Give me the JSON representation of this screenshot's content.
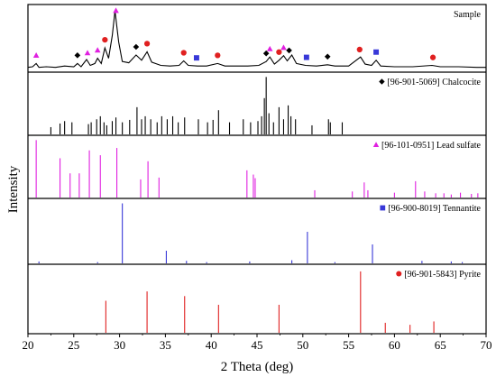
{
  "chart_data": {
    "type": "line",
    "xlabel": "2 Theta (deg)",
    "ylabel": "Intensity",
    "xlim": [
      20,
      70
    ],
    "x_ticks": [
      20,
      25,
      30,
      35,
      40,
      45,
      50,
      55,
      60,
      65,
      70
    ],
    "panels": [
      {
        "label": "Sample",
        "kind": "pattern",
        "color": "#000000",
        "pattern": [
          [
            20.0,
            0.06
          ],
          [
            20.5,
            0.07
          ],
          [
            20.9,
            0.12
          ],
          [
            21.2,
            0.06
          ],
          [
            22,
            0.07
          ],
          [
            23,
            0.06
          ],
          [
            24,
            0.08
          ],
          [
            25,
            0.07
          ],
          [
            25.4,
            0.12
          ],
          [
            25.8,
            0.07
          ],
          [
            26.4,
            0.18
          ],
          [
            26.8,
            0.09
          ],
          [
            27.3,
            0.12
          ],
          [
            27.6,
            0.2
          ],
          [
            28.0,
            0.12
          ],
          [
            28.4,
            0.36
          ],
          [
            28.8,
            0.2
          ],
          [
            29.2,
            0.55
          ],
          [
            29.5,
            0.93
          ],
          [
            29.9,
            0.45
          ],
          [
            30.3,
            0.15
          ],
          [
            31,
            0.13
          ],
          [
            31.8,
            0.25
          ],
          [
            32.4,
            0.17
          ],
          [
            33.0,
            0.3
          ],
          [
            33.5,
            0.14
          ],
          [
            34.5,
            0.09
          ],
          [
            35.5,
            0.08
          ],
          [
            36.5,
            0.09
          ],
          [
            37.0,
            0.16
          ],
          [
            37.5,
            0.09
          ],
          [
            38.5,
            0.08
          ],
          [
            39.5,
            0.08
          ],
          [
            40.7,
            0.12
          ],
          [
            41.5,
            0.08
          ],
          [
            43,
            0.08
          ],
          [
            44,
            0.08
          ],
          [
            45.2,
            0.09
          ],
          [
            46.0,
            0.15
          ],
          [
            46.4,
            0.22
          ],
          [
            46.9,
            0.11
          ],
          [
            47.4,
            0.17
          ],
          [
            47.9,
            0.24
          ],
          [
            48.3,
            0.16
          ],
          [
            48.8,
            0.25
          ],
          [
            49.3,
            0.12
          ],
          [
            50.3,
            0.09
          ],
          [
            51.5,
            0.08
          ],
          [
            52.7,
            0.1
          ],
          [
            53.5,
            0.08
          ],
          [
            55.0,
            0.08
          ],
          [
            56.3,
            0.22
          ],
          [
            56.8,
            0.11
          ],
          [
            57.5,
            0.09
          ],
          [
            58.0,
            0.17
          ],
          [
            58.5,
            0.08
          ],
          [
            60,
            0.07
          ],
          [
            62,
            0.07
          ],
          [
            64.1,
            0.09
          ],
          [
            65,
            0.07
          ],
          [
            67,
            0.07
          ],
          [
            69,
            0.06
          ],
          [
            70,
            0.06
          ]
        ],
        "markers": [
          {
            "x": 20.9,
            "symbol": "triangle",
            "color": "#e020e0"
          },
          {
            "x": 25.4,
            "symbol": "diamond",
            "color": "#000000"
          },
          {
            "x": 26.5,
            "symbol": "triangle",
            "color": "#e020e0"
          },
          {
            "x": 27.6,
            "symbol": "triangle",
            "color": "#e020e0"
          },
          {
            "x": 28.4,
            "symbol": "circle",
            "color": "#e02020"
          },
          {
            "x": 29.6,
            "symbol": "triangle",
            "color": "#e020e0"
          },
          {
            "x": 31.8,
            "symbol": "diamond",
            "color": "#000000"
          },
          {
            "x": 33.0,
            "symbol": "circle",
            "color": "#e02020"
          },
          {
            "x": 37.0,
            "symbol": "circle",
            "color": "#e02020"
          },
          {
            "x": 38.4,
            "symbol": "square",
            "color": "#3838d8"
          },
          {
            "x": 40.7,
            "symbol": "circle",
            "color": "#e02020"
          },
          {
            "x": 46.0,
            "symbol": "diamond",
            "color": "#000000"
          },
          {
            "x": 46.4,
            "symbol": "triangle",
            "color": "#e020e0"
          },
          {
            "x": 47.4,
            "symbol": "circle",
            "color": "#e02020"
          },
          {
            "x": 47.9,
            "symbol": "triangle",
            "color": "#e020e0"
          },
          {
            "x": 48.5,
            "symbol": "diamond",
            "color": "#000000"
          },
          {
            "x": 50.4,
            "symbol": "square",
            "color": "#3838d8"
          },
          {
            "x": 52.7,
            "symbol": "diamond",
            "color": "#000000"
          },
          {
            "x": 56.2,
            "symbol": "circle",
            "color": "#e02020"
          },
          {
            "x": 58.0,
            "symbol": "square",
            "color": "#3838d8"
          },
          {
            "x": 64.2,
            "symbol": "circle",
            "color": "#e02020"
          }
        ]
      },
      {
        "label": "[96-901-5069] Chalcocite",
        "kind": "sticks",
        "symbol": "diamond",
        "color": "#000000",
        "sticks": [
          [
            22.5,
            0.12
          ],
          [
            23.5,
            0.18
          ],
          [
            24.0,
            0.22
          ],
          [
            24.8,
            0.2
          ],
          [
            26.6,
            0.17
          ],
          [
            26.9,
            0.2
          ],
          [
            27.5,
            0.25
          ],
          [
            27.9,
            0.3
          ],
          [
            28.3,
            0.2
          ],
          [
            28.6,
            0.15
          ],
          [
            29.2,
            0.22
          ],
          [
            29.6,
            0.28
          ],
          [
            30.3,
            0.2
          ],
          [
            31.1,
            0.24
          ],
          [
            31.9,
            0.45
          ],
          [
            32.4,
            0.25
          ],
          [
            32.8,
            0.3
          ],
          [
            33.4,
            0.25
          ],
          [
            34.1,
            0.2
          ],
          [
            34.6,
            0.3
          ],
          [
            35.2,
            0.25
          ],
          [
            35.8,
            0.3
          ],
          [
            36.4,
            0.2
          ],
          [
            37.1,
            0.28
          ],
          [
            38.6,
            0.25
          ],
          [
            39.6,
            0.2
          ],
          [
            40.2,
            0.24
          ],
          [
            40.8,
            0.4
          ],
          [
            42.0,
            0.2
          ],
          [
            43.5,
            0.25
          ],
          [
            44.3,
            0.2
          ],
          [
            45.1,
            0.22
          ],
          [
            45.5,
            0.3
          ],
          [
            45.8,
            0.6
          ],
          [
            46.0,
            0.95
          ],
          [
            46.3,
            0.35
          ],
          [
            46.8,
            0.2
          ],
          [
            47.4,
            0.45
          ],
          [
            47.9,
            0.25
          ],
          [
            48.4,
            0.48
          ],
          [
            48.7,
            0.3
          ],
          [
            49.2,
            0.25
          ],
          [
            51.0,
            0.15
          ],
          [
            52.8,
            0.25
          ],
          [
            53.0,
            0.2
          ],
          [
            54.3,
            0.2
          ]
        ]
      },
      {
        "label": "[96-101-0951] Lead sulfate",
        "kind": "sticks",
        "symbol": "triangle",
        "color": "#e020e0",
        "sticks": [
          [
            20.9,
            0.95
          ],
          [
            23.5,
            0.65
          ],
          [
            24.6,
            0.4
          ],
          [
            25.6,
            0.4
          ],
          [
            26.7,
            0.78
          ],
          [
            27.9,
            0.7
          ],
          [
            29.7,
            0.82
          ],
          [
            32.3,
            0.3
          ],
          [
            33.1,
            0.6
          ],
          [
            34.3,
            0.33
          ],
          [
            43.9,
            0.45
          ],
          [
            44.6,
            0.38
          ],
          [
            44.8,
            0.32
          ],
          [
            51.3,
            0.12
          ],
          [
            55.4,
            0.1
          ],
          [
            56.7,
            0.25
          ],
          [
            57.1,
            0.12
          ],
          [
            60.0,
            0.08
          ],
          [
            62.3,
            0.27
          ],
          [
            63.3,
            0.1
          ],
          [
            64.5,
            0.07
          ],
          [
            65.4,
            0.07
          ],
          [
            66.2,
            0.05
          ],
          [
            67.2,
            0.08
          ],
          [
            68.4,
            0.06
          ],
          [
            69.1,
            0.07
          ]
        ]
      },
      {
        "label": "[96-900-8019] Tennantite",
        "kind": "sticks",
        "symbol": "square",
        "color": "#3838d8",
        "sticks": [
          [
            21.2,
            0.03
          ],
          [
            27.6,
            0.02
          ],
          [
            30.3,
            0.95
          ],
          [
            35.1,
            0.2
          ],
          [
            37.3,
            0.04
          ],
          [
            39.5,
            0.02
          ],
          [
            44.2,
            0.03
          ],
          [
            48.8,
            0.05
          ],
          [
            50.5,
            0.5
          ],
          [
            53.5,
            0.02
          ],
          [
            57.6,
            0.3
          ],
          [
            63.0,
            0.04
          ],
          [
            66.2,
            0.03
          ],
          [
            67.4,
            0.02
          ]
        ]
      },
      {
        "label": "[96-901-5843] Pyrite",
        "kind": "sticks",
        "symbol": "circle",
        "color": "#e02020",
        "sticks": [
          [
            28.5,
            0.48
          ],
          [
            33.0,
            0.62
          ],
          [
            37.1,
            0.55
          ],
          [
            40.8,
            0.42
          ],
          [
            47.4,
            0.42
          ],
          [
            56.3,
            0.92
          ],
          [
            59.0,
            0.15
          ],
          [
            61.7,
            0.12
          ],
          [
            64.3,
            0.17
          ]
        ]
      }
    ]
  }
}
